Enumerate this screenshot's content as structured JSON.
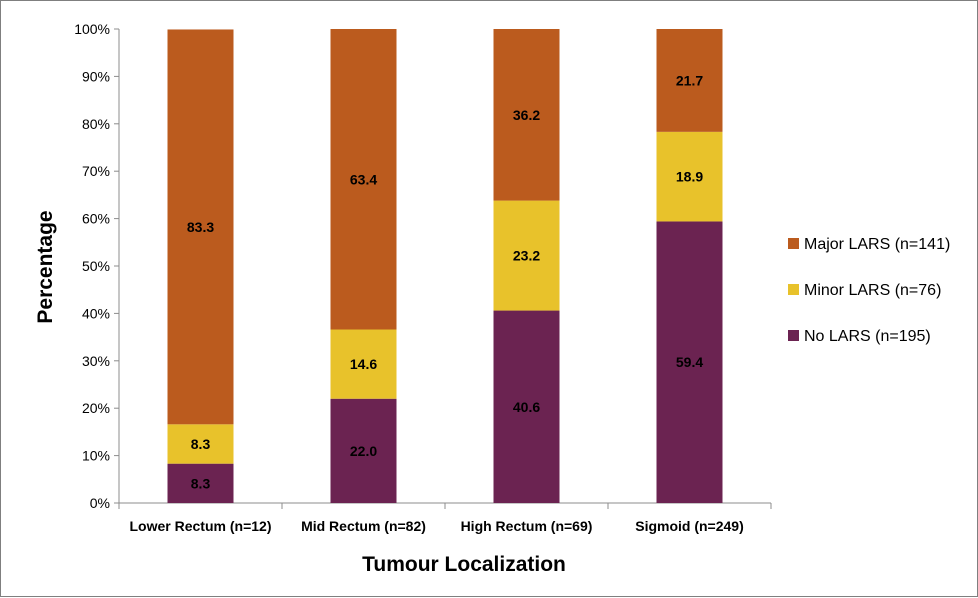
{
  "chart_data": {
    "type": "bar",
    "stacked": true,
    "title": "",
    "xlabel": "Tumour Localization",
    "ylabel": "Percentage",
    "ylim": [
      0,
      100
    ],
    "yticks": [
      "0%",
      "10%",
      "20%",
      "30%",
      "40%",
      "50%",
      "60%",
      "70%",
      "80%",
      "90%",
      "100%"
    ],
    "grid": false,
    "legend_position": "right",
    "categories": [
      "Lower Rectum (n=12)",
      "Mid Rectum (n=82)",
      "High Rectum (n=69)",
      "Sigmoid (n=249)"
    ],
    "series": [
      {
        "name": "No LARS (n=195)",
        "values": [
          8.3,
          22.0,
          40.6,
          59.4
        ],
        "labels": [
          "8.3",
          "22.0",
          "40.6",
          "59.4"
        ],
        "color": "#6b2351"
      },
      {
        "name": "Minor LARS (n=76)",
        "values": [
          8.3,
          14.6,
          23.2,
          18.9
        ],
        "labels": [
          "8.3",
          "14.6",
          "23.2",
          "18.9"
        ],
        "color": "#e8c22b"
      },
      {
        "name": "Major LARS (n=141)",
        "values": [
          83.3,
          63.4,
          36.2,
          21.7
        ],
        "labels": [
          "83.3",
          "63.4",
          "36.2",
          "21.7"
        ],
        "color": "#bb5b1e"
      }
    ],
    "legend_order": [
      2,
      1,
      0
    ]
  }
}
